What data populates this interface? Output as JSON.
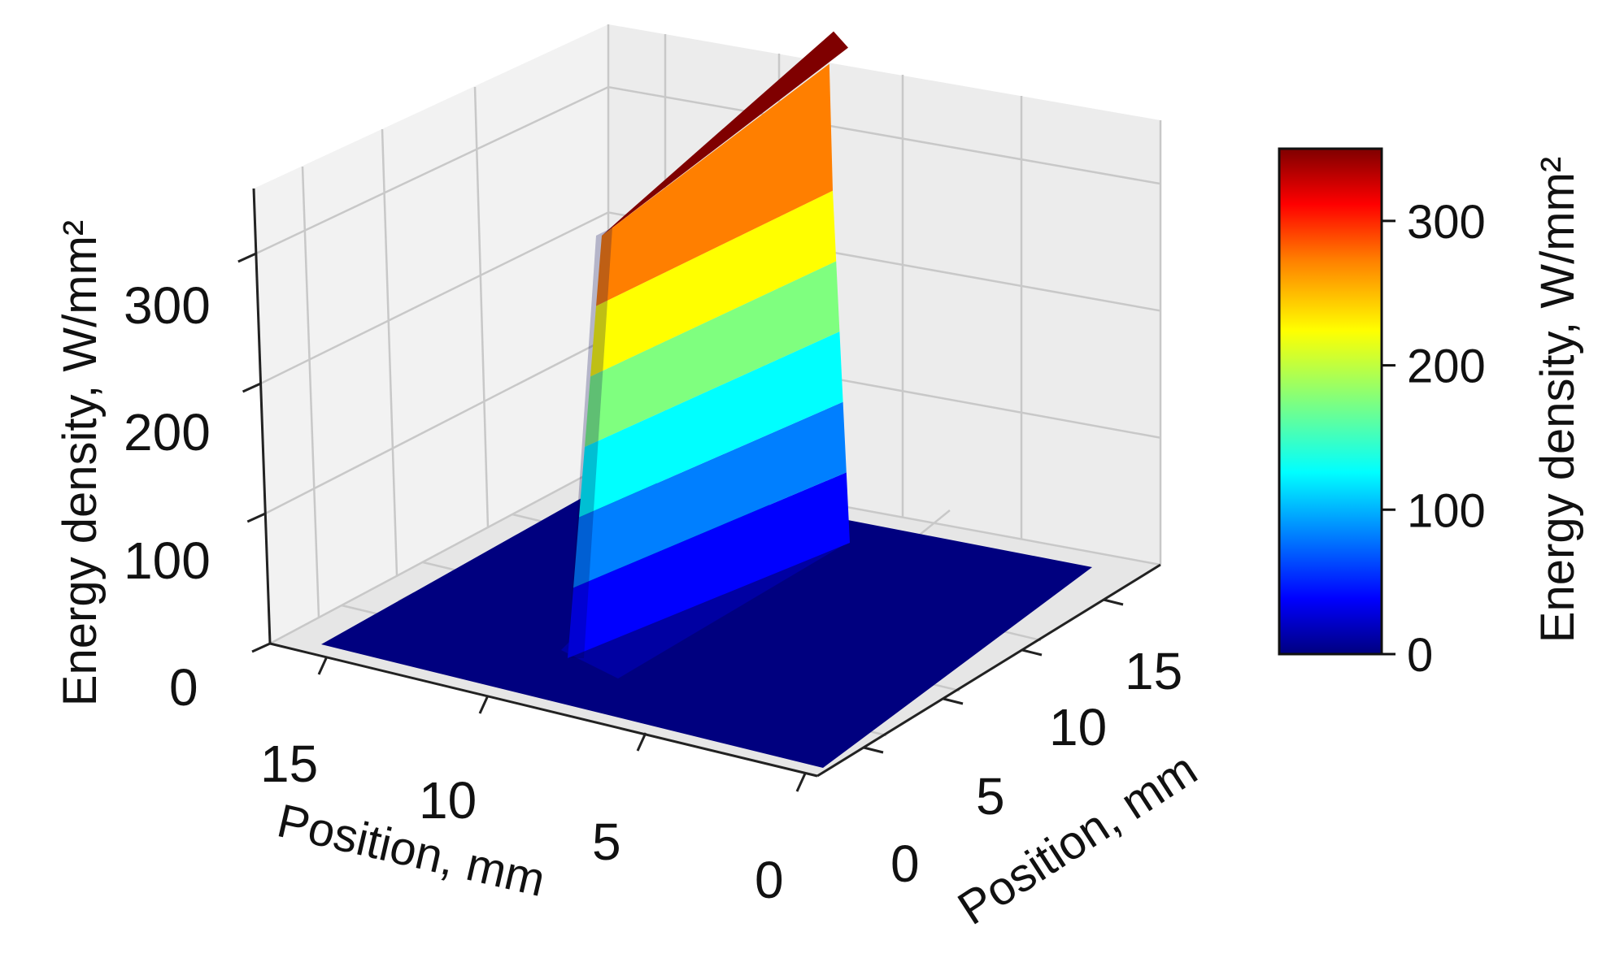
{
  "chart_data": {
    "type": "surface3d",
    "title": "",
    "x_axis": {
      "label": "Position, mm",
      "ticks": [
        "15",
        "10",
        "5",
        "0"
      ],
      "range": [
        0,
        18
      ]
    },
    "y_axis": {
      "label": "Position, mm",
      "ticks": [
        "0",
        "5",
        "10",
        "15"
      ],
      "range": [
        0,
        18
      ]
    },
    "z_axis": {
      "label": "Energy density, W/mm²",
      "ticks": [
        "0",
        "100",
        "200",
        "300"
      ],
      "range": [
        0,
        350
      ]
    },
    "colorbar": {
      "label": "Energy density, W/mm²",
      "ticks": [
        "0",
        "100",
        "200",
        "300"
      ],
      "range": [
        0,
        350
      ],
      "colormap": [
        "#00007f",
        "#0000ff",
        "#007fff",
        "#00ffff",
        "#7fff7f",
        "#ffff00",
        "#ff7f00",
        "#ff0000",
        "#7f0000"
      ]
    },
    "surface": {
      "description": "Flat base near 0; raised band (beam profile) along the y direction",
      "base_value": 0,
      "band_x_range_mm": [
        7.5,
        11.5
      ],
      "band_y_range_mm": [
        1.5,
        17.5
      ],
      "plateau_levels": [
        50,
        100,
        150,
        200,
        250,
        300
      ],
      "peak_value_start": 300,
      "peak_value_end": 340
    }
  }
}
